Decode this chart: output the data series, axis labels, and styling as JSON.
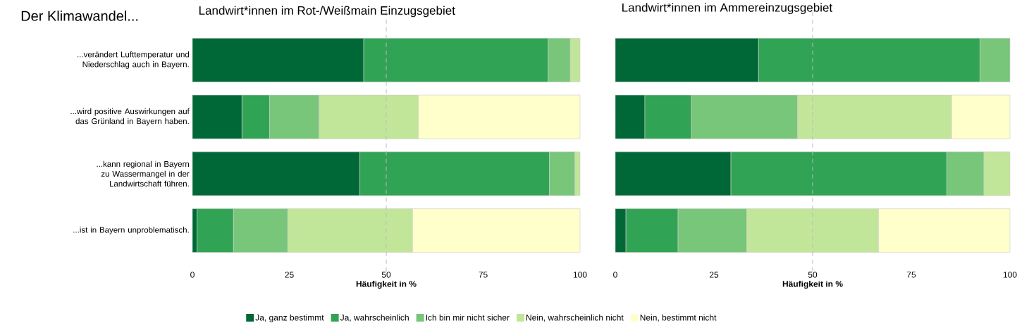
{
  "chart_data": [
    {
      "type": "bar",
      "orientation": "horizontal",
      "stacked": true,
      "ylabel": "Der Klimawandel...",
      "title": "Landwirt*innen im Rot-/Weißmain Einzugsgebiet",
      "xlabel": "Häufigkeit in %",
      "categories": [
        "...verändert Lufttemperatur und Niederschlag auch in Bayern.",
        "...wird positive Auswirkungen auf das Grünland in Bayern haben.",
        "...kann regional in Bayern zu Wassermangel in der Landwirtschaft führen.",
        "...ist in Bayern unproblematisch."
      ],
      "series": [
        {
          "name": "Ja, ganz bestimmt",
          "color": "#006837",
          "values": [
            44.2,
            12.8,
            43.2,
            1.2
          ]
        },
        {
          "name": "Ja, wahrscheinlich",
          "color": "#31a354",
          "values": [
            47.6,
            7.1,
            48.9,
            9.4
          ]
        },
        {
          "name": "Ich bin mir nicht sicher",
          "color": "#78c679",
          "values": [
            5.7,
            12.8,
            6.6,
            14.0
          ]
        },
        {
          "name": "Nein, wahrscheinlich nicht",
          "color": "#c2e699",
          "values": [
            2.5,
            25.6,
            1.3,
            32.2
          ]
        },
        {
          "name": "Nein, bestimmt nicht",
          "color": "#ffffcc",
          "values": [
            null,
            41.7,
            null,
            43.2
          ]
        }
      ],
      "xlim": [
        0,
        100
      ],
      "xticks": [
        0,
        25,
        50,
        75,
        100
      ],
      "ref_lines": [
        {
          "axis": "x",
          "value": 50,
          "color": "#bbbbbb",
          "line_style": "dashed"
        }
      ],
      "legend": "bottom"
    },
    {
      "type": "bar",
      "orientation": "horizontal",
      "stacked": true,
      "title": "Landwirt*innen im Ammereinzugsgebiet",
      "xlabel": "Häufigkeit in %",
      "categories": [
        null,
        null,
        null,
        null
      ],
      "series": [
        {
          "color": "#006837",
          "values": [
            36.3,
            7.5,
            29.3,
            2.7
          ]
        },
        {
          "color": "#31a354",
          "values": [
            56.1,
            11.8,
            54.7,
            13.2
          ]
        },
        {
          "color": "#78c679",
          "values": [
            7.6,
            26.9,
            9.4,
            17.4
          ]
        },
        {
          "color": "#c2e699",
          "values": [
            null,
            39.0,
            6.6,
            33.4
          ]
        },
        {
          "color": "#ffffcc",
          "values": [
            null,
            14.8,
            null,
            33.3
          ]
        }
      ],
      "xlim": [
        0,
        100
      ],
      "xticks": [
        0,
        25,
        50,
        75,
        100
      ],
      "ref_lines": [
        {
          "axis": "x",
          "value": 50,
          "color": "#bbbbbb",
          "line_style": "dashed"
        }
      ]
    }
  ]
}
